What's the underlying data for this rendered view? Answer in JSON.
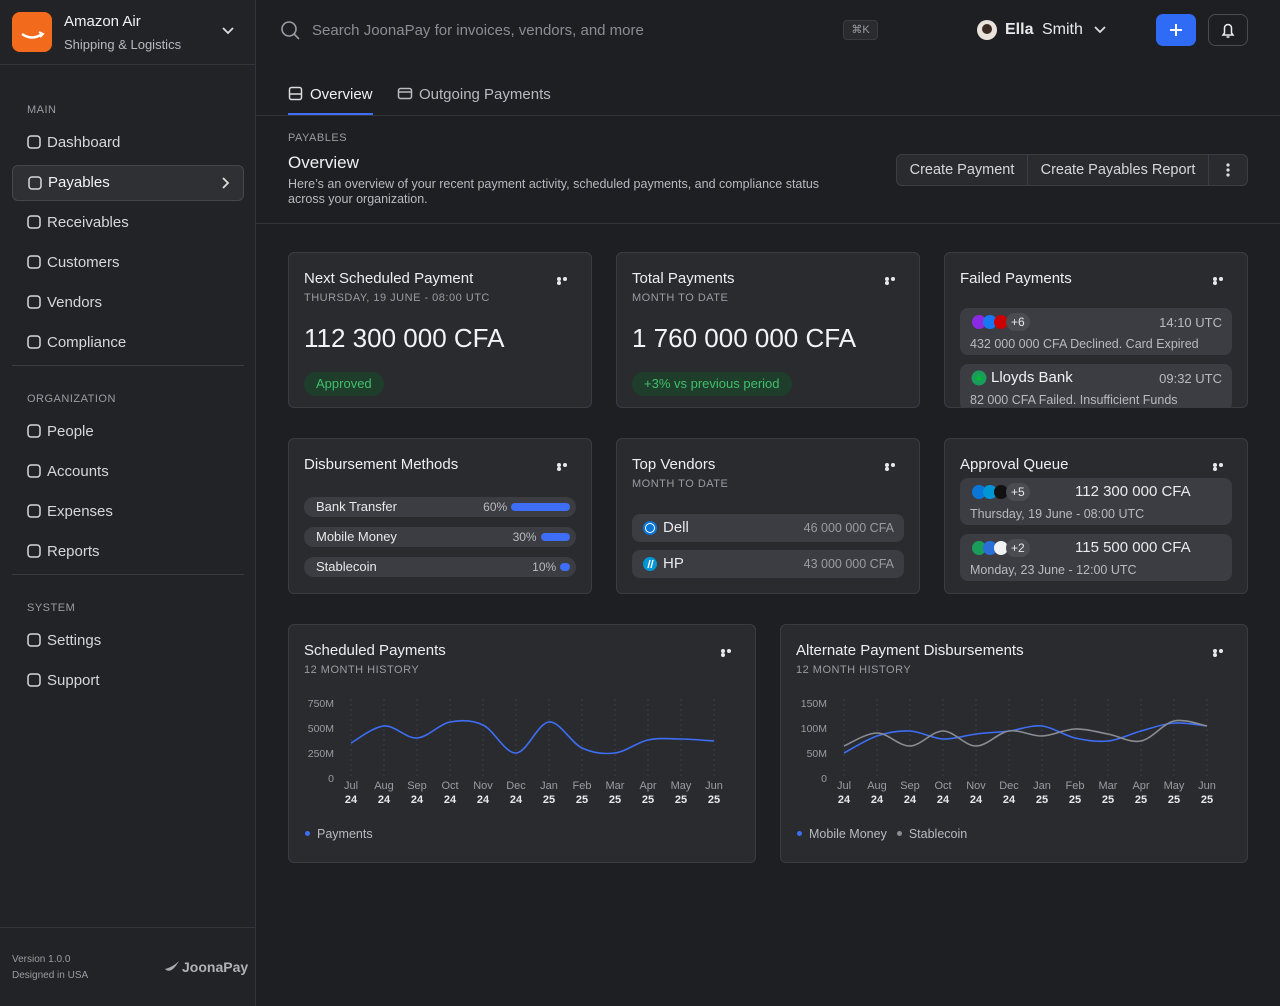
{
  "sidebar": {
    "org_name": "Amazon Air",
    "org_sub": "Shipping & Logistics",
    "sections": [
      {
        "title": "MAIN",
        "items": [
          "Dashboard",
          "Payables",
          "Receivables",
          "Customers",
          "Vendors",
          "Compliance"
        ]
      },
      {
        "title": "ORGANIZATION",
        "items": [
          "People",
          "Accounts",
          "Expenses",
          "Reports"
        ]
      },
      {
        "title": "SYSTEM",
        "items": [
          "Settings",
          "Support"
        ]
      }
    ],
    "version": "Version 1.0.0",
    "designed": "Designed in USA",
    "brand": "JoonaPay"
  },
  "topbar": {
    "search_placeholder": "Search JoonaPay for invoices, vendors, and more",
    "shortcut": "⌘K",
    "user_first": "Ella",
    "user_last": "Smith"
  },
  "tabs": [
    "Overview",
    "Outgoing Payments"
  ],
  "header": {
    "eyebrow": "PAYABLES",
    "title": "Overview",
    "description": "Here’s an overview of your recent payment activity, scheduled payments, and compliance status across your organization.",
    "actions": [
      "Create Payment",
      "Create Payables Report"
    ]
  },
  "next_payment": {
    "title": "Next Scheduled Payment",
    "subtitle": "THURSDAY, 19 JUNE - 08:00 UTC",
    "amount": "112 300 000 CFA",
    "badge": "Approved"
  },
  "total_payments": {
    "title": "Total Payments",
    "subtitle": "MONTH TO DATE",
    "amount": "1 760 000 000 CFA",
    "badge": "+3% vs previous period"
  },
  "failed_payments": {
    "title": "Failed Payments",
    "items": [
      {
        "name": "+6",
        "time": "14:10 UTC",
        "text": "432 000 000 CFA Declined. Card Expired"
      },
      {
        "name": "Lloyds Bank",
        "time": "09:32 UTC",
        "text": "82 000 CFA Failed. Insufficient Funds"
      }
    ]
  },
  "disbursement": {
    "title": "Disbursement Methods",
    "categories": [
      "Bank Transfer",
      "Mobile Money",
      "Stablecoin"
    ],
    "values": [
      60,
      30,
      10
    ],
    "value_labels": [
      "60%",
      "30%",
      "10%"
    ],
    "color": "#3d6ef5"
  },
  "top_vendors": {
    "title": "Top Vendors",
    "subtitle": "MONTH TO DATE",
    "items": [
      {
        "name": "Dell",
        "amount": "46 000 000 CFA"
      },
      {
        "name": "HP",
        "amount": "43 000 000 CFA"
      }
    ]
  },
  "approval_queue": {
    "title": "Approval Queue",
    "items": [
      {
        "extra": "+5",
        "amount": "112 300 000 CFA",
        "date": "Thursday, 19 June - 08:00 UTC"
      },
      {
        "extra": "+2",
        "amount": "115 500 000 CFA",
        "date": "Monday, 23 June - 12:00 UTC"
      }
    ]
  },
  "chart_data": [
    {
      "type": "line",
      "title": "Scheduled Payments",
      "subtitle": "12 MONTH HISTORY",
      "categories": [
        [
          "Jul",
          "24"
        ],
        [
          "Aug",
          "24"
        ],
        [
          "Sep",
          "24"
        ],
        [
          "Oct",
          "24"
        ],
        [
          "Nov",
          "24"
        ],
        [
          "Dec",
          "24"
        ],
        [
          "Jan",
          "25"
        ],
        [
          "Feb",
          "25"
        ],
        [
          "Mar",
          "25"
        ],
        [
          "Apr",
          "25"
        ],
        [
          "May",
          "25"
        ],
        [
          "Jun",
          "25"
        ]
      ],
      "series": [
        {
          "name": "Payments",
          "color": "#3d6ef5",
          "values": [
            350000000,
            520000000,
            400000000,
            560000000,
            530000000,
            250000000,
            560000000,
            300000000,
            250000000,
            380000000,
            390000000,
            370000000
          ]
        }
      ],
      "ylim": [
        0,
        750000000
      ],
      "yticks": [
        0,
        {
          "value": 250000000,
          "label": "250M"
        },
        {
          "value": 500000000,
          "label": "500M"
        },
        {
          "value": 750000000,
          "label": "750M"
        }
      ],
      "grid": true
    },
    {
      "type": "line",
      "title": "Alternate Payment Disbursements",
      "subtitle": "12 MONTH HISTORY",
      "categories": [
        [
          "Jul",
          "24"
        ],
        [
          "Aug",
          "24"
        ],
        [
          "Sep",
          "24"
        ],
        [
          "Oct",
          "24"
        ],
        [
          "Nov",
          "24"
        ],
        [
          "Dec",
          "24"
        ],
        [
          "Jan",
          "25"
        ],
        [
          "Feb",
          "25"
        ],
        [
          "Mar",
          "25"
        ],
        [
          "Apr",
          "25"
        ],
        [
          "May",
          "25"
        ],
        [
          "Jun",
          "25"
        ]
      ],
      "series": [
        {
          "name": "Mobile Money",
          "color": "#3d6ef5",
          "values": [
            50000000,
            84000000,
            94000000,
            78000000,
            88000000,
            94000000,
            104000000,
            80000000,
            74000000,
            94000000,
            110000000,
            104000000
          ]
        },
        {
          "name": "Stablecoin",
          "color": "#8a8d93",
          "values": [
            64000000,
            90000000,
            64000000,
            94000000,
            64000000,
            94000000,
            84000000,
            98000000,
            88000000,
            74000000,
            114000000,
            104000000
          ]
        }
      ],
      "ylim": [
        0,
        150000000
      ],
      "yticks": [
        0,
        {
          "value": 50000000,
          "label": "50M"
        },
        {
          "value": 100000000,
          "label": "100M"
        },
        {
          "value": 150000000,
          "label": "150M"
        }
      ],
      "grid": true
    }
  ]
}
